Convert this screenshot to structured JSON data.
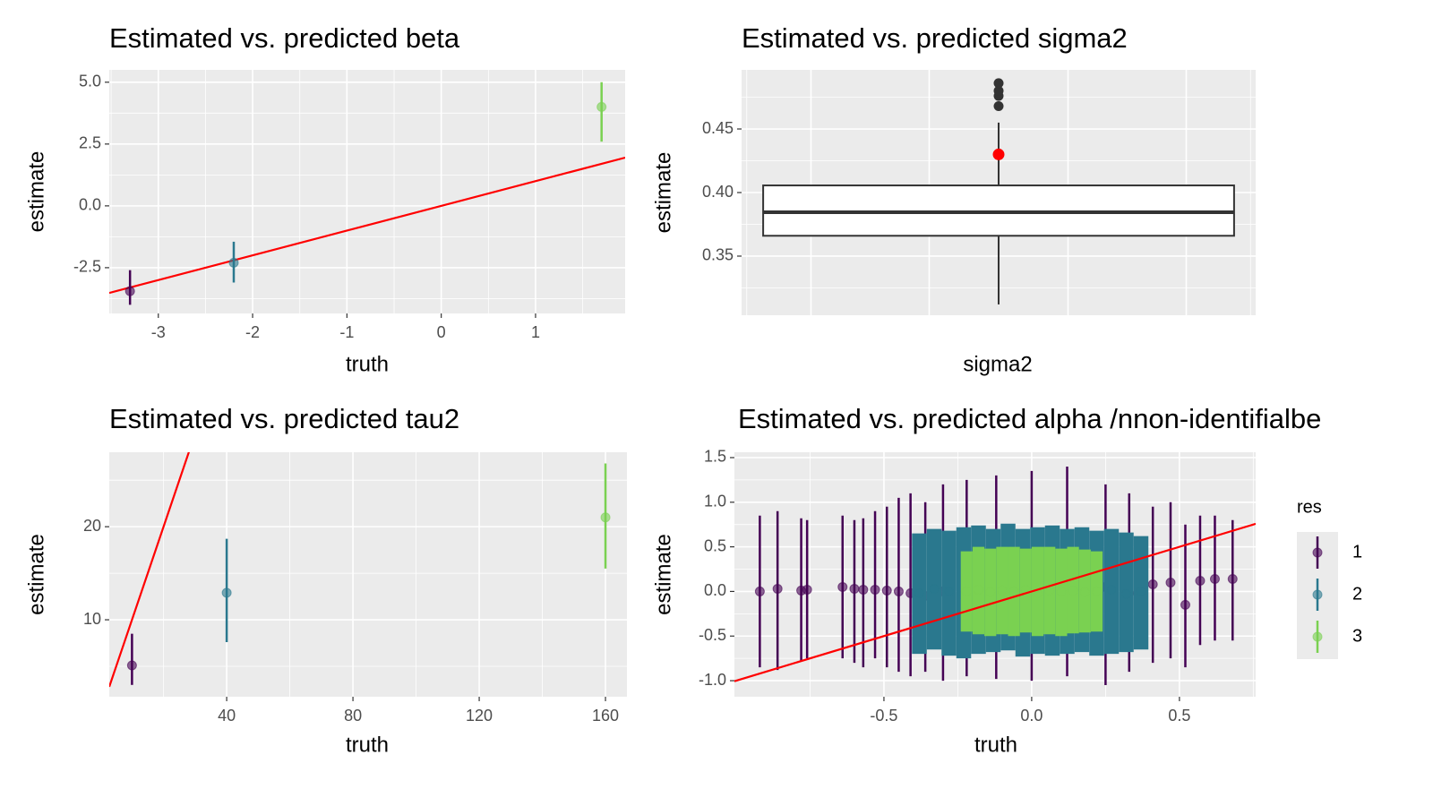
{
  "chart_data": [
    {
      "type": "errorbar",
      "title": "Estimated vs. predicted beta",
      "xlabel": "truth",
      "ylabel": "estimate",
      "x": [
        -3.3,
        -2.2,
        1.7
      ],
      "values": [
        -3.45,
        -2.3,
        4.0
      ],
      "lower": [
        -4.0,
        -3.1,
        2.6
      ],
      "upper": [
        -2.6,
        -1.45,
        5.0
      ],
      "colors": [
        "#440154",
        "#2a788e",
        "#7ad151"
      ],
      "xlim": [
        -3.52,
        1.95
      ],
      "xticks": [
        -3,
        -2,
        -1,
        0,
        1
      ],
      "ylim": [
        -4.35,
        5.5
      ],
      "yticks": [
        {
          "value": -2.5,
          "label": "-2.5"
        },
        {
          "value": 0,
          "label": "0.0"
        },
        {
          "value": 2.5,
          "label": "2.5"
        },
        {
          "value": 5,
          "label": "5.0"
        }
      ],
      "identity_line_color": "#ff0000",
      "grid": true
    },
    {
      "type": "box",
      "title": "Estimated vs. predicted sigma2",
      "xlabel": "sigma2",
      "ylabel": "estimate",
      "box": {
        "whislo": 0.312,
        "q1": 0.366,
        "med": 0.3845,
        "q3": 0.4056,
        "whishi": 0.455
      },
      "outliers": [
        0.468,
        0.476,
        0.48,
        0.486
      ],
      "truth": 0.43,
      "truth_color": "#ff0000",
      "ylim": [
        0.3035,
        0.4965
      ],
      "yticks": [
        0.35,
        {
          "value": 0.4,
          "label": "0.40"
        },
        0.45
      ],
      "grid": true
    },
    {
      "type": "errorbar",
      "title": "Estimated vs. predicted tau2",
      "xlabel": "truth",
      "ylabel": "estimate",
      "x": [
        10,
        40,
        160
      ],
      "values": [
        5.1,
        12.9,
        21.0
      ],
      "lower": [
        3.0,
        7.6,
        15.5
      ],
      "upper": [
        8.5,
        18.7,
        26.8
      ],
      "colors": [
        "#440154",
        "#2a788e",
        "#7ad151"
      ],
      "xlim": [
        2.8,
        166.8
      ],
      "xticks": [
        40,
        80,
        120,
        160
      ],
      "ylim": [
        1.73,
        28
      ],
      "yticks": [
        10,
        20
      ],
      "identity_line_color": "#ff0000",
      "grid": true
    },
    {
      "type": "errorbar_series",
      "title": "Estimated vs. predicted alpha /nnon-identifialbe",
      "xlabel": "truth",
      "ylabel": "estimate",
      "legend_title": "res",
      "series": [
        {
          "name": "1",
          "color": "#440154",
          "x": [
            -0.92,
            -0.86,
            -0.78,
            -0.76,
            -0.64,
            -0.6,
            -0.57,
            -0.53,
            -0.49,
            -0.45,
            -0.41,
            -0.36,
            -0.3,
            -0.22,
            -0.12,
            0.0,
            0.12,
            0.25,
            0.33,
            0.41,
            0.47,
            0.52,
            0.57,
            0.62,
            0.68
          ],
          "values": [
            0.0,
            0.03,
            0.01,
            0.02,
            0.05,
            0.03,
            0.02,
            0.02,
            0.01,
            0.0,
            -0.02,
            -0.05,
            0.0,
            0.05,
            -0.05,
            0.0,
            0.03,
            0.05,
            -0.02,
            0.08,
            0.1,
            -0.15,
            0.12,
            0.14,
            0.14
          ],
          "lower": [
            -0.85,
            -0.88,
            -0.78,
            -0.75,
            -0.75,
            -0.8,
            -0.85,
            -0.75,
            -0.85,
            -0.9,
            -0.95,
            -0.9,
            -1.0,
            -0.95,
            -0.98,
            -1.0,
            -0.95,
            -1.05,
            -0.9,
            -0.8,
            -0.75,
            -0.85,
            -0.6,
            -0.55,
            -0.55
          ],
          "upper": [
            0.85,
            0.9,
            0.82,
            0.8,
            0.85,
            0.8,
            0.82,
            0.9,
            0.95,
            1.05,
            1.1,
            1.0,
            1.2,
            1.25,
            1.3,
            1.35,
            1.4,
            1.2,
            1.1,
            0.95,
            1.0,
            0.75,
            0.85,
            0.85,
            0.8
          ]
        },
        {
          "name": "2",
          "color": "#2a788e",
          "x": [
            -0.38,
            -0.33,
            -0.28,
            -0.23,
            -0.18,
            -0.13,
            -0.08,
            -0.03,
            0.02,
            0.07,
            0.12,
            0.17,
            0.22,
            0.27,
            0.32,
            0.37
          ],
          "values": [
            -0.02,
            0.03,
            0.0,
            -0.04,
            0.02,
            0.0,
            0.05,
            -0.03,
            0.01,
            0.0,
            -0.02,
            0.04,
            0.0,
            0.02,
            -0.03,
            0.0
          ],
          "lower": [
            -0.7,
            -0.65,
            -0.72,
            -0.75,
            -0.7,
            -0.68,
            -0.66,
            -0.73,
            -0.7,
            -0.72,
            -0.7,
            -0.68,
            -0.72,
            -0.7,
            -0.68,
            -0.65
          ],
          "upper": [
            0.65,
            0.7,
            0.68,
            0.72,
            0.74,
            0.7,
            0.76,
            0.7,
            0.72,
            0.74,
            0.7,
            0.72,
            0.68,
            0.7,
            0.66,
            0.62
          ]
        },
        {
          "name": "3",
          "color": "#7ad151",
          "x": [
            -0.22,
            -0.18,
            -0.14,
            -0.1,
            -0.06,
            -0.02,
            0.02,
            0.06,
            0.1,
            0.14,
            0.18,
            0.22
          ],
          "values": [
            0.0,
            0.02,
            -0.01,
            0.01,
            0.0,
            0.02,
            -0.02,
            0.01,
            0.0,
            0.01,
            -0.01,
            0.0
          ],
          "lower": [
            -0.45,
            -0.48,
            -0.5,
            -0.48,
            -0.5,
            -0.46,
            -0.5,
            -0.48,
            -0.5,
            -0.47,
            -0.46,
            -0.45
          ],
          "upper": [
            0.45,
            0.5,
            0.48,
            0.5,
            0.5,
            0.48,
            0.5,
            0.5,
            0.48,
            0.5,
            0.47,
            0.45
          ]
        }
      ],
      "xlim": [
        -1.006,
        0.758
      ],
      "xticks": [
        -0.5,
        {
          "value": 0,
          "label": "0.0"
        },
        0.5
      ],
      "ylim": [
        -1.18,
        1.56
      ],
      "yticks": [
        {
          "value": -1,
          "label": "-1.0"
        },
        -0.5,
        {
          "value": 0,
          "label": "0.0"
        },
        0.5,
        {
          "value": 1,
          "label": "1.0"
        },
        1.5
      ],
      "identity_line_color": "#ff0000",
      "grid": true
    }
  ]
}
